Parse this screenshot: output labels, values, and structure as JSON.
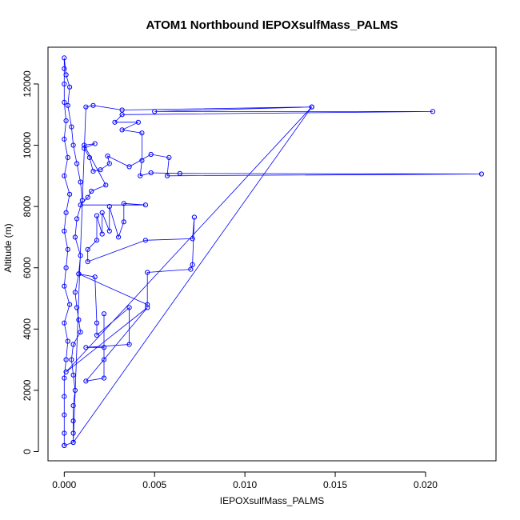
{
  "chart_data": {
    "type": "scatter",
    "title": "ATOM1 Northbound IEPOXsulfMass_PALMS",
    "xlabel": "IEPOXsulfMass_PALMS",
    "ylabel": "Altitude (m)",
    "xlim": [
      -0.0009,
      0.0239
    ],
    "ylim": [
      -300,
      13200
    ],
    "x_ticks": [
      0.0,
      0.005,
      0.01,
      0.015,
      0.02
    ],
    "x_tick_labels": [
      "0.000",
      "0.005",
      "0.010",
      "0.015",
      "0.020"
    ],
    "y_ticks": [
      0,
      2000,
      4000,
      6000,
      8000,
      10000,
      12000
    ],
    "y_tick_labels": [
      "0",
      "2000",
      "4000",
      "6000",
      "8000",
      "10000",
      "12000"
    ],
    "grid": false,
    "marker": "open-circle",
    "connect_points": true,
    "series_color": "#0000ff",
    "series": [
      {
        "points": [
          [
            0.0,
            200
          ],
          [
            0.0,
            600
          ],
          [
            0.0,
            1200
          ],
          [
            0.0,
            1800
          ],
          [
            0.0,
            2400
          ],
          [
            0.0001,
            3000
          ],
          [
            0.0002,
            3600
          ],
          [
            0.0,
            4200
          ],
          [
            0.0003,
            4800
          ],
          [
            0.0,
            5400
          ],
          [
            0.0001,
            6000
          ],
          [
            0.0002,
            6600
          ],
          [
            0.0,
            7200
          ],
          [
            0.0001,
            7800
          ],
          [
            0.0003,
            8400
          ],
          [
            0.0,
            9000
          ],
          [
            0.0002,
            9600
          ],
          [
            0.0,
            10200
          ],
          [
            0.0001,
            10800
          ],
          [
            0.0,
            11400
          ],
          [
            0.0,
            12000
          ],
          [
            0.0,
            12500
          ],
          [
            0.0,
            12850
          ],
          [
            0.0001,
            12300
          ],
          [
            0.0003,
            11900
          ],
          [
            0.0002,
            11300
          ],
          [
            0.0004,
            10600
          ],
          [
            0.0005,
            10000
          ],
          [
            0.0007,
            9400
          ],
          [
            0.0009,
            8800
          ],
          [
            0.001,
            8200
          ],
          [
            0.0007,
            7600
          ],
          [
            0.0006,
            7000
          ],
          [
            0.0009,
            6400
          ],
          [
            0.0008,
            5800
          ],
          [
            0.0006,
            5200
          ],
          [
            0.0007,
            4700
          ],
          [
            0.0008,
            4300
          ],
          [
            0.0009,
            3900
          ],
          [
            0.0005,
            3500
          ],
          [
            0.0004,
            3000
          ],
          [
            0.0005,
            2500
          ],
          [
            0.0006,
            2000
          ],
          [
            0.0005,
            1500
          ],
          [
            0.0005,
            1000
          ],
          [
            0.0005,
            600
          ],
          [
            0.0005,
            300
          ],
          [
            0.0012,
            11250
          ],
          [
            0.0016,
            11300
          ],
          [
            0.0032,
            11150
          ],
          [
            0.0137,
            11250
          ],
          [
            0.005,
            11100
          ],
          [
            0.0204,
            11100
          ],
          [
            0.0032,
            11000
          ],
          [
            0.0028,
            10750
          ],
          [
            0.0041,
            10750
          ],
          [
            0.0032,
            10500
          ],
          [
            0.0043,
            10400
          ],
          [
            0.0043,
            9500
          ],
          [
            0.0042,
            9000
          ],
          [
            0.0048,
            9100
          ],
          [
            0.0064,
            9080
          ],
          [
            0.0231,
            9060
          ],
          [
            0.0057,
            9000
          ],
          [
            0.0058,
            9600
          ],
          [
            0.0048,
            9700
          ],
          [
            0.0036,
            9300
          ],
          [
            0.0024,
            9650
          ],
          [
            0.0025,
            9400
          ],
          [
            0.002,
            9200
          ],
          [
            0.0016,
            9150
          ],
          [
            0.0014,
            9600
          ],
          [
            0.0011,
            9900
          ],
          [
            0.0017,
            10050
          ],
          [
            0.0011,
            10000
          ],
          [
            0.0023,
            8700
          ],
          [
            0.0015,
            8500
          ],
          [
            0.0013,
            8300
          ],
          [
            0.0009,
            8050
          ],
          [
            0.0045,
            8050
          ],
          [
            0.0033,
            8100
          ],
          [
            0.0033,
            7500
          ],
          [
            0.003,
            7000
          ],
          [
            0.0025,
            8000
          ],
          [
            0.0025,
            7200
          ],
          [
            0.0021,
            7800
          ],
          [
            0.0021,
            7100
          ],
          [
            0.0018,
            7700
          ],
          [
            0.0018,
            6900
          ],
          [
            0.0013,
            6600
          ],
          [
            0.0013,
            6200
          ],
          [
            0.0045,
            6900
          ],
          [
            0.0071,
            6950
          ],
          [
            0.0072,
            7650
          ],
          [
            0.0071,
            6100
          ],
          [
            0.007,
            5950
          ],
          [
            0.0046,
            5850
          ],
          [
            0.0046,
            4800
          ],
          [
            0.0008,
            5800
          ],
          [
            0.0017,
            5700
          ],
          [
            0.0018,
            4200
          ],
          [
            0.0018,
            3800
          ],
          [
            0.0036,
            4700
          ],
          [
            0.0036,
            3500
          ],
          [
            0.0012,
            3400
          ],
          [
            0.0022,
            3400
          ],
          [
            0.0022,
            4500
          ],
          [
            0.0022,
            3000
          ],
          [
            0.0022,
            2400
          ],
          [
            0.0012,
            2300
          ],
          [
            0.0046,
            4700
          ],
          [
            0.0001,
            2600
          ],
          [
            0.0137,
            11250
          ],
          [
            0.0005,
            300
          ],
          [
            0.0,
            200
          ]
        ]
      }
    ]
  }
}
